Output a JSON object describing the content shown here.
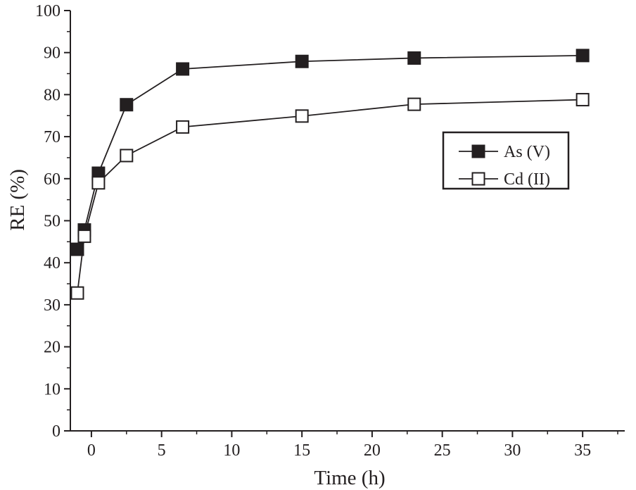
{
  "chart_data": {
    "type": "line",
    "title": "",
    "xlabel": "Time (h)",
    "ylabel": "RE (%)",
    "xlim": [
      -1.5,
      38
    ],
    "ylim": [
      0,
      100
    ],
    "x_ticks": [
      0,
      5,
      10,
      15,
      20,
      25,
      30,
      35
    ],
    "x_tick_labels": [
      "0",
      "5",
      "10",
      "15",
      "20",
      "25",
      "30",
      "35"
    ],
    "y_ticks": [
      0,
      10,
      20,
      30,
      40,
      50,
      60,
      70,
      80,
      90,
      100
    ],
    "y_tick_labels": [
      "0",
      "10",
      "20",
      "30",
      "40",
      "50",
      "60",
      "70",
      "80",
      "90",
      "100"
    ],
    "legend_position": "right-center",
    "series": [
      {
        "name": "As (V)",
        "marker": "filled-square",
        "color": "#231f20",
        "x": [
          -1,
          -0.5,
          0.5,
          2.5,
          6.5,
          15,
          23,
          35
        ],
        "values": [
          43.2,
          47.8,
          61.3,
          77.6,
          86.1,
          87.9,
          88.7,
          89.3
        ]
      },
      {
        "name": "Cd (II)",
        "marker": "open-square",
        "color": "#231f20",
        "x": [
          -1,
          -0.5,
          0.5,
          2.5,
          6.5,
          15,
          23,
          35
        ],
        "values": [
          32.8,
          46.3,
          59.0,
          65.5,
          72.3,
          74.9,
          77.7,
          78.8
        ]
      }
    ]
  }
}
